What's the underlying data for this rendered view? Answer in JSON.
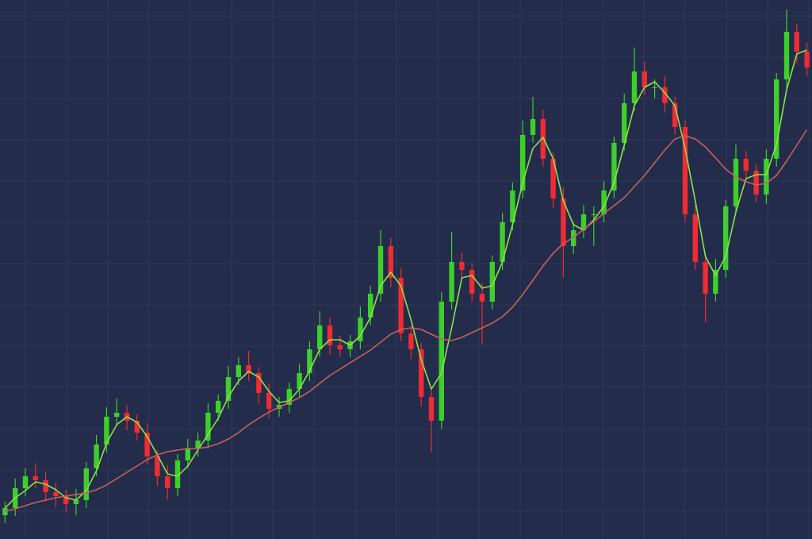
{
  "chart_data": {
    "type": "candlestick",
    "open": [
      30,
      39,
      64,
      79,
      74,
      59,
      54,
      44,
      49,
      89,
      119,
      154,
      159,
      149,
      134,
      104,
      79,
      64,
      99,
      114,
      124,
      159,
      174,
      204,
      219,
      209,
      184,
      164,
      169,
      189,
      209,
      239,
      269,
      244,
      239,
      249,
      279,
      309,
      369,
      329,
      259,
      239,
      179,
      149,
      299,
      349,
      339,
      309,
      299,
      349,
      399,
      439,
      509,
      529,
      479,
      429,
      369,
      389,
      409,
      409,
      439,
      499,
      549,
      589,
      569,
      569,
      549,
      519,
      409,
      349,
      309,
      339,
      419,
      479,
      464,
      434,
      479,
      579,
      639,
      614
    ],
    "high": [
      47,
      76,
      89,
      95,
      84,
      71,
      62,
      63,
      97,
      131,
      166,
      177,
      169,
      157,
      146,
      112,
      93,
      107,
      126,
      134,
      171,
      182,
      218,
      229,
      237,
      217,
      196,
      179,
      197,
      221,
      249,
      287,
      279,
      256,
      257,
      293,
      319,
      389,
      379,
      341,
      269,
      247,
      191,
      311,
      387,
      361,
      347,
      323,
      357,
      411,
      449,
      527,
      557,
      541,
      487,
      443,
      399,
      421,
      419,
      451,
      507,
      561,
      619,
      601,
      579,
      583,
      557,
      527,
      421,
      359,
      353,
      427,
      497,
      489,
      472,
      491,
      587,
      667,
      649,
      626
    ],
    "low": [
      20,
      29,
      54,
      64,
      47,
      40,
      34,
      30,
      39,
      79,
      109,
      144,
      137,
      124,
      94,
      67,
      50,
      54,
      89,
      104,
      114,
      149,
      164,
      194,
      199,
      170,
      152,
      154,
      159,
      179,
      199,
      229,
      232,
      229,
      229,
      239,
      269,
      299,
      317,
      249,
      227,
      167,
      109,
      139,
      289,
      327,
      299,
      245,
      289,
      339,
      389,
      429,
      499,
      469,
      417,
      329,
      359,
      379,
      369,
      399,
      429,
      489,
      539,
      559,
      555,
      537,
      509,
      399,
      339,
      273,
      299,
      329,
      409,
      454,
      424,
      422,
      469,
      569,
      600,
      584
    ],
    "close": [
      39,
      64,
      79,
      74,
      59,
      54,
      44,
      49,
      89,
      119,
      154,
      159,
      149,
      134,
      104,
      79,
      64,
      99,
      114,
      124,
      159,
      174,
      204,
      219,
      209,
      184,
      164,
      169,
      189,
      209,
      239,
      269,
      244,
      239,
      249,
      279,
      309,
      369,
      329,
      259,
      239,
      179,
      149,
      299,
      349,
      339,
      309,
      299,
      349,
      399,
      439,
      509,
      529,
      479,
      429,
      369,
      389,
      409,
      409,
      439,
      499,
      549,
      589,
      569,
      569,
      549,
      519,
      409,
      349,
      309,
      339,
      419,
      479,
      464,
      434,
      479,
      579,
      639,
      614,
      594
    ],
    "up_color": "#3ecf2c",
    "down_color": "#ef2b35",
    "ylim": [
      0,
      679
    ],
    "grid": true,
    "series": [
      {
        "color": "#8fe04a",
        "values": [
          39,
          52,
          61,
          72,
          69,
          62,
          52,
          49,
          61,
          86,
          121,
          144,
          154,
          147,
          129,
          106,
          82,
          79,
          92,
          112,
          132,
          152,
          179,
          199,
          211,
          204,
          186,
          172,
          174,
          189,
          212,
          239,
          251,
          251,
          244,
          256,
          279,
          319,
          336,
          319,
          276,
          226,
          189,
          209,
          266,
          329,
          332,
          316,
          319,
          349,
          396,
          449,
          492,
          506,
          479,
          426,
          396,
          389,
          402,
          419,
          449,
          496,
          546,
          569,
          576,
          562,
          546,
          492,
          426,
          356,
          332,
          356,
          412,
          454,
          459,
          459,
          497,
          566,
          611,
          616
        ]
      },
      {
        "color": "#c9605e",
        "values": [
          35,
          38,
          42,
          46,
          49,
          52,
          54,
          56,
          58,
          62,
          68,
          76,
          84,
          92,
          100,
          106,
          110,
          112,
          114,
          114,
          116,
          120,
          126,
          134,
          144,
          152,
          160,
          166,
          172,
          178,
          186,
          196,
          206,
          214,
          222,
          230,
          238,
          248,
          258,
          264,
          266,
          264,
          258,
          252,
          250,
          254,
          260,
          266,
          272,
          280,
          292,
          308,
          326,
          344,
          360,
          372,
          380,
          390,
          400,
          410,
          420,
          430,
          444,
          458,
          474,
          490,
          504,
          508,
          504,
          494,
          480,
          466,
          456,
          450,
          446,
          448,
          458,
          476,
          496,
          516
        ]
      }
    ]
  }
}
